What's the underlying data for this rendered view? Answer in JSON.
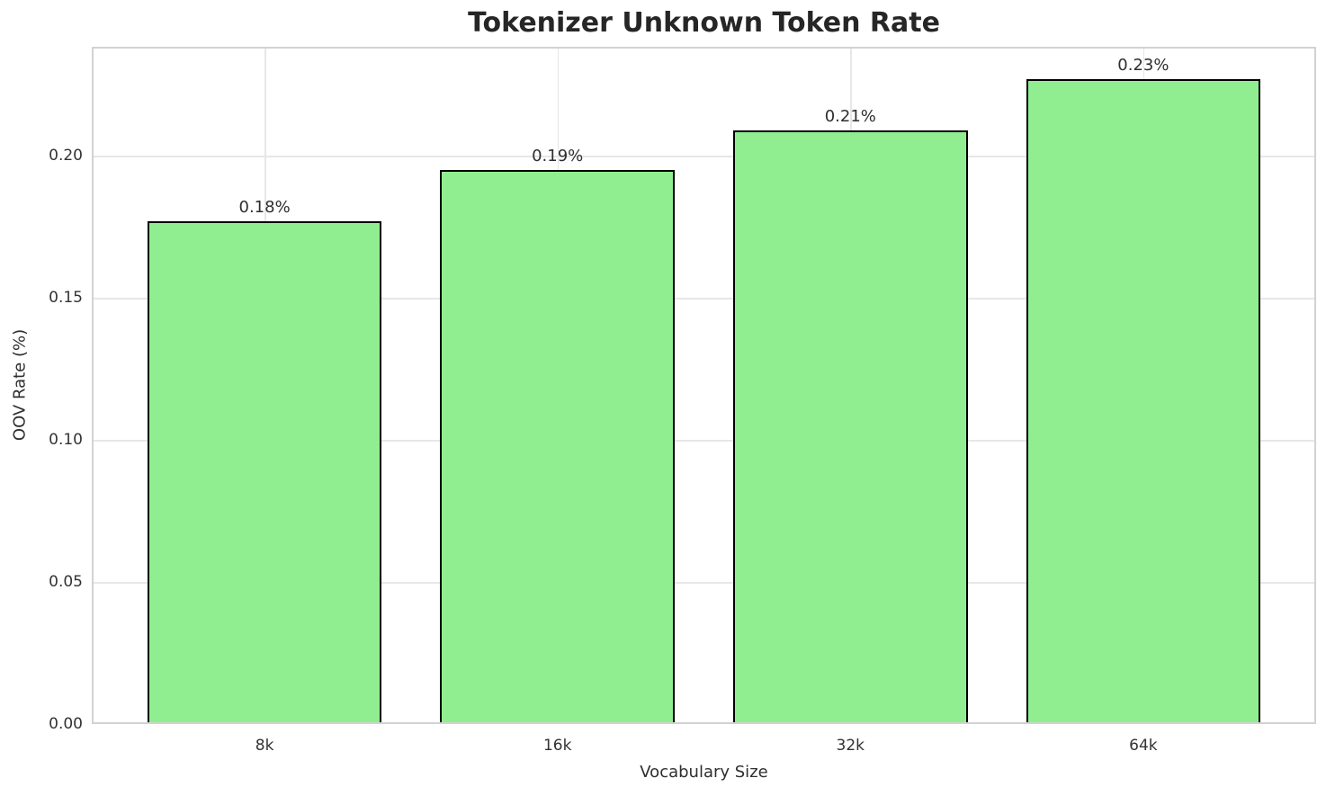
{
  "chart_data": {
    "type": "bar",
    "title": "Tokenizer Unknown Token Rate",
    "xlabel": "Vocabulary Size",
    "ylabel": "OOV Rate (%)",
    "categories": [
      "8k",
      "16k",
      "32k",
      "64k"
    ],
    "values": [
      0.177,
      0.195,
      0.209,
      0.227
    ],
    "bar_labels": [
      "0.18%",
      "0.19%",
      "0.21%",
      "0.23%"
    ],
    "ylim": [
      0,
      0.2383
    ],
    "yticks": [
      0,
      0.05,
      0.1,
      0.15,
      0.2
    ],
    "ytick_labels": [
      "0.00",
      "0.05",
      "0.10",
      "0.15",
      "0.20"
    ],
    "grid": true,
    "legend": "none",
    "bar_color": "#90EE90",
    "bar_edge_color": "#000000",
    "grid_color": "#e7e7e7",
    "spine_color": "#d2d2d2",
    "background_color": "#ffffff"
  }
}
